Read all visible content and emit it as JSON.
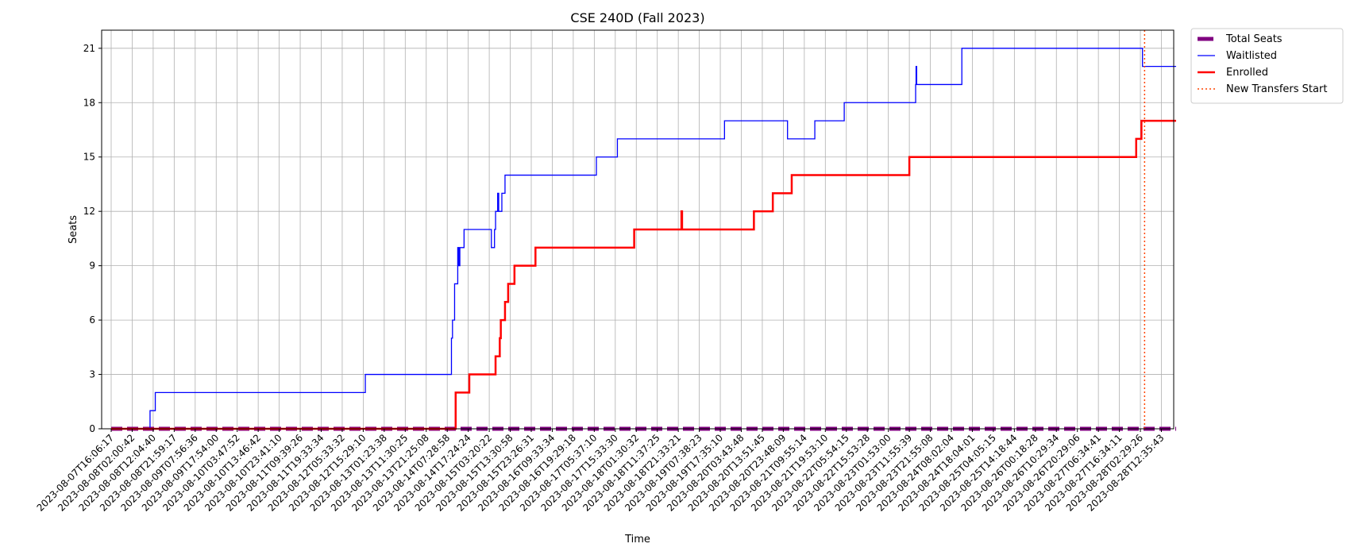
{
  "chart_data": {
    "type": "line",
    "title": "CSE 240D (Fall 2023)",
    "xlabel": "Time",
    "ylabel": "Seats",
    "ylim": [
      0,
      22
    ],
    "yticks": [
      0,
      3,
      6,
      9,
      12,
      15,
      18,
      21
    ],
    "grid": true,
    "legend_placement": "outside-top-right",
    "x_ticks": [
      "2023-08-07T16:06:17",
      "2023-08-08T02:00:42",
      "2023-08-08T12:04:40",
      "2023-08-08T21:59:17",
      "2023-08-09T07:56:36",
      "2023-08-09T17:54:00",
      "2023-08-10T03:47:52",
      "2023-08-10T13:46:42",
      "2023-08-10T23:41:10",
      "2023-08-11T09:39:26",
      "2023-08-11T19:33:34",
      "2023-08-12T05:33:32",
      "2023-08-12T15:29:10",
      "2023-08-13T01:23:38",
      "2023-08-13T11:30:25",
      "2023-08-13T21:25:08",
      "2023-08-14T07:28:58",
      "2023-08-14T17:24:24",
      "2023-08-15T03:20:22",
      "2023-08-15T13:30:58",
      "2023-08-15T23:26:31",
      "2023-08-16T09:33:34",
      "2023-08-16T19:29:18",
      "2023-08-17T05:37:10",
      "2023-08-17T15:33:30",
      "2023-08-18T01:30:32",
      "2023-08-18T11:37:25",
      "2023-08-18T21:33:21",
      "2023-08-19T07:38:23",
      "2023-08-19T17:35:10",
      "2023-08-20T03:43:48",
      "2023-08-20T13:51:45",
      "2023-08-20T23:48:09",
      "2023-08-21T09:55:14",
      "2023-08-21T19:53:10",
      "2023-08-22T05:54:15",
      "2023-08-22T15:53:28",
      "2023-08-23T01:53:00",
      "2023-08-23T11:55:39",
      "2023-08-23T21:55:08",
      "2023-08-24T08:02:04",
      "2023-08-24T18:04:01",
      "2023-08-25T04:05:15",
      "2023-08-25T14:18:44",
      "2023-08-26T00:18:28",
      "2023-08-26T10:29:34",
      "2023-08-26T20:29:06",
      "2023-08-27T06:34:41",
      "2023-08-27T16:34:11",
      "2023-08-28T02:29:26",
      "2023-08-28T12:35:43"
    ],
    "x_range": [
      0,
      50.7
    ],
    "series": [
      {
        "name": "Total Seats",
        "color": "#800080",
        "style": "dashed-thick",
        "points": [
          [
            0,
            0
          ],
          [
            50.7,
            0
          ]
        ]
      },
      {
        "name": "Waitlisted",
        "color": "#0000ff",
        "style": "solid-thin",
        "points": [
          [
            0,
            0
          ],
          [
            1.85,
            0
          ],
          [
            1.85,
            1
          ],
          [
            2.1,
            1
          ],
          [
            2.1,
            2
          ],
          [
            12.1,
            2
          ],
          [
            12.1,
            3
          ],
          [
            16.2,
            3
          ],
          [
            16.2,
            5
          ],
          [
            16.25,
            5
          ],
          [
            16.25,
            6
          ],
          [
            16.35,
            6
          ],
          [
            16.35,
            8
          ],
          [
            16.5,
            8
          ],
          [
            16.5,
            10
          ],
          [
            16.55,
            10
          ],
          [
            16.55,
            9
          ],
          [
            16.6,
            9
          ],
          [
            16.6,
            10
          ],
          [
            16.8,
            10
          ],
          [
            16.8,
            11
          ],
          [
            18.1,
            11
          ],
          [
            18.1,
            10
          ],
          [
            18.25,
            10
          ],
          [
            18.25,
            11
          ],
          [
            18.3,
            11
          ],
          [
            18.3,
            12
          ],
          [
            18.4,
            12
          ],
          [
            18.4,
            13
          ],
          [
            18.45,
            13
          ],
          [
            18.45,
            12
          ],
          [
            18.6,
            12
          ],
          [
            18.6,
            13
          ],
          [
            18.75,
            13
          ],
          [
            18.75,
            14
          ],
          [
            23.1,
            14
          ],
          [
            23.1,
            15
          ],
          [
            24.1,
            15
          ],
          [
            24.1,
            16
          ],
          [
            29.2,
            16
          ],
          [
            29.2,
            17
          ],
          [
            32.2,
            17
          ],
          [
            32.2,
            16
          ],
          [
            33.5,
            16
          ],
          [
            33.5,
            17
          ],
          [
            34.9,
            17
          ],
          [
            34.9,
            18
          ],
          [
            38.3,
            18
          ],
          [
            38.3,
            19
          ],
          [
            38.32,
            19
          ],
          [
            38.32,
            20
          ],
          [
            38.35,
            20
          ],
          [
            38.35,
            19
          ],
          [
            40.5,
            19
          ],
          [
            40.5,
            21
          ],
          [
            49.1,
            21
          ],
          [
            49.1,
            20
          ],
          [
            50.7,
            20
          ]
        ]
      },
      {
        "name": "Enrolled",
        "color": "#ff0000",
        "style": "solid-thick",
        "points": [
          [
            0,
            0
          ],
          [
            16.4,
            0
          ],
          [
            16.4,
            2
          ],
          [
            17.05,
            2
          ],
          [
            17.05,
            3
          ],
          [
            18.3,
            3
          ],
          [
            18.3,
            4
          ],
          [
            18.5,
            4
          ],
          [
            18.5,
            5
          ],
          [
            18.55,
            5
          ],
          [
            18.55,
            6
          ],
          [
            18.75,
            6
          ],
          [
            18.75,
            7
          ],
          [
            18.9,
            7
          ],
          [
            18.9,
            8
          ],
          [
            19.2,
            8
          ],
          [
            19.2,
            9
          ],
          [
            20.2,
            9
          ],
          [
            20.2,
            10
          ],
          [
            24.9,
            10
          ],
          [
            24.9,
            11
          ],
          [
            27.15,
            11
          ],
          [
            27.15,
            12
          ],
          [
            27.18,
            12
          ],
          [
            27.18,
            11
          ],
          [
            30.6,
            11
          ],
          [
            30.6,
            12
          ],
          [
            31.5,
            12
          ],
          [
            31.5,
            13
          ],
          [
            32.4,
            13
          ],
          [
            32.4,
            14
          ],
          [
            38.0,
            14
          ],
          [
            38.0,
            15
          ],
          [
            48.8,
            15
          ],
          [
            48.8,
            16
          ],
          [
            49.05,
            16
          ],
          [
            49.05,
            17
          ],
          [
            50.7,
            17
          ]
        ]
      },
      {
        "name": "New Transfers Start",
        "color": "#ff4500",
        "style": "dotted-vertical",
        "x": 49.2
      }
    ]
  }
}
